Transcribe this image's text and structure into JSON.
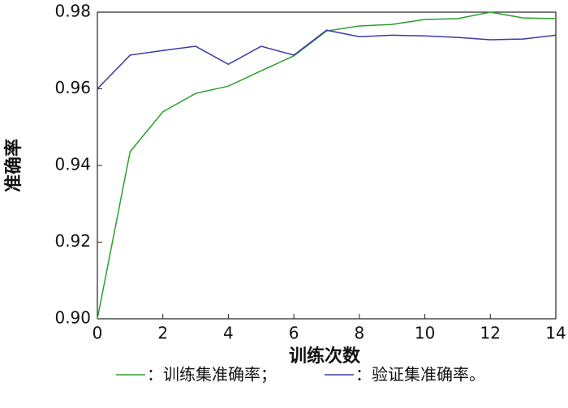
{
  "chart_data": {
    "type": "line",
    "x_label": "训练次数",
    "y_label": "准确率",
    "x": [
      0,
      1,
      2,
      3,
      4,
      5,
      6,
      7,
      8,
      9,
      10,
      11,
      12,
      13,
      14
    ],
    "series": [
      {
        "name": "：训练集准确率；",
        "color": "#2ca02c",
        "values": [
          0.9,
          0.9436,
          0.954,
          0.9588,
          0.9607,
          0.9647,
          0.9686,
          0.9751,
          0.9764,
          0.9768,
          0.9781,
          0.9783,
          0.98,
          0.9785,
          0.9783
        ]
      },
      {
        "name": "：验证集准确率。",
        "color": "#3a3aa8",
        "values": [
          0.96,
          0.9688,
          0.97,
          0.9711,
          0.9664,
          0.9711,
          0.9688,
          0.9753,
          0.9736,
          0.974,
          0.9738,
          0.9734,
          0.9728,
          0.973,
          0.974
        ]
      }
    ],
    "xlim": [
      0,
      14
    ],
    "xticks": [
      0,
      2,
      4,
      6,
      8,
      10,
      12,
      14
    ],
    "ylim": [
      0.9,
      0.98
    ],
    "yticks": [
      {
        "value": 0.9,
        "label": "0.90"
      },
      0.92,
      0.94,
      0.96,
      0.98
    ]
  }
}
